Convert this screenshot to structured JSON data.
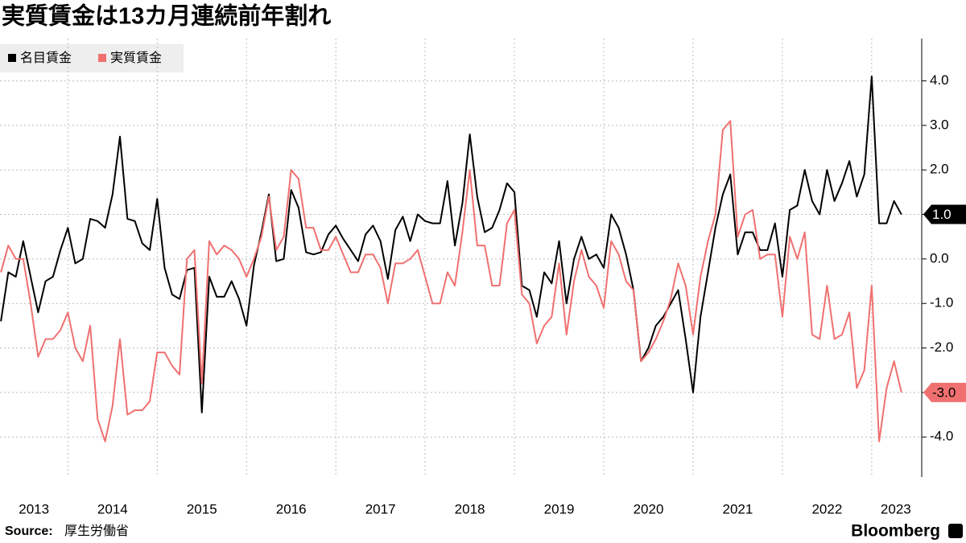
{
  "chart_data": {
    "type": "line",
    "title": "実質賃金は13カ月連続前年割れ",
    "source_label": "Source:",
    "source": "厚生労働省",
    "brand": "Bloomberg",
    "x": [
      2013.25,
      2013.333,
      2013.417,
      2013.5,
      2013.583,
      2013.667,
      2013.75,
      2013.833,
      2013.917,
      2014.0,
      2014.083,
      2014.167,
      2014.25,
      2014.333,
      2014.417,
      2014.5,
      2014.583,
      2014.667,
      2014.75,
      2014.833,
      2014.917,
      2015.0,
      2015.083,
      2015.167,
      2015.25,
      2015.333,
      2015.417,
      2015.5,
      2015.583,
      2015.667,
      2015.75,
      2015.833,
      2015.917,
      2016.0,
      2016.083,
      2016.167,
      2016.25,
      2016.333,
      2016.417,
      2016.5,
      2016.583,
      2016.667,
      2016.75,
      2016.833,
      2016.917,
      2017.0,
      2017.083,
      2017.167,
      2017.25,
      2017.333,
      2017.417,
      2017.5,
      2017.583,
      2017.667,
      2017.75,
      2017.833,
      2017.917,
      2018.0,
      2018.083,
      2018.167,
      2018.25,
      2018.333,
      2018.417,
      2018.5,
      2018.583,
      2018.667,
      2018.75,
      2018.833,
      2018.917,
      2019.0,
      2019.083,
      2019.167,
      2019.25,
      2019.333,
      2019.417,
      2019.5,
      2019.583,
      2019.667,
      2019.75,
      2019.833,
      2019.917,
      2020.0,
      2020.083,
      2020.167,
      2020.25,
      2020.333,
      2020.417,
      2020.5,
      2020.583,
      2020.667,
      2020.75,
      2020.833,
      2020.917,
      2021.0,
      2021.083,
      2021.167,
      2021.25,
      2021.333,
      2021.417,
      2021.5,
      2021.583,
      2021.667,
      2021.75,
      2021.833,
      2021.917,
      2022.0,
      2022.083,
      2022.167,
      2022.25,
      2022.333,
      2022.417,
      2022.5,
      2022.583,
      2022.667,
      2022.75,
      2022.833,
      2022.917,
      2023.0,
      2023.083,
      2023.167,
      2023.25,
      2023.333
    ],
    "series": [
      {
        "name": "名目賃金",
        "color": "#000000",
        "end_label": "1.0",
        "values": [
          -1.4,
          -0.3,
          -0.4,
          0.4,
          -0.4,
          -1.2,
          -0.5,
          -0.4,
          0.2,
          0.7,
          -0.1,
          0.0,
          0.9,
          0.85,
          0.7,
          1.45,
          2.75,
          0.9,
          0.85,
          0.35,
          0.2,
          1.35,
          -0.2,
          -0.8,
          -0.9,
          -0.25,
          -0.2,
          -3.45,
          -0.4,
          -0.85,
          -0.85,
          -0.5,
          -0.9,
          -1.5,
          -0.15,
          0.6,
          1.45,
          -0.05,
          0.0,
          1.55,
          1.15,
          0.15,
          0.1,
          0.15,
          0.55,
          0.75,
          0.45,
          0.2,
          -0.05,
          0.55,
          0.75,
          0.4,
          -0.45,
          0.65,
          0.95,
          0.4,
          1.0,
          0.85,
          0.8,
          0.8,
          1.75,
          0.3,
          1.25,
          2.8,
          1.4,
          0.6,
          0.7,
          1.1,
          1.7,
          1.5,
          -0.6,
          -0.7,
          -1.3,
          -0.3,
          -0.55,
          0.4,
          -1.0,
          0.0,
          0.5,
          0.0,
          0.1,
          -0.2,
          1.0,
          0.7,
          0.1,
          -0.7,
          -2.3,
          -2.0,
          -1.5,
          -1.3,
          -1.0,
          -0.7,
          -1.8,
          -3.0,
          -1.3,
          -0.3,
          0.7,
          1.45,
          1.9,
          0.1,
          0.6,
          0.6,
          0.2,
          0.2,
          0.8,
          -0.4,
          1.1,
          1.2,
          2.0,
          1.3,
          1.0,
          2.0,
          1.3,
          1.7,
          2.2,
          1.4,
          1.9,
          4.1,
          0.8,
          0.8,
          1.3,
          1.0
        ]
      },
      {
        "name": "実質賃金",
        "color": "#f07070",
        "end_label": "-3.0",
        "values": [
          -0.3,
          0.3,
          0.0,
          0.0,
          -1.0,
          -2.2,
          -1.8,
          -1.8,
          -1.6,
          -1.2,
          -2.0,
          -2.3,
          -1.5,
          -3.6,
          -4.1,
          -3.3,
          -1.8,
          -3.5,
          -3.4,
          -3.4,
          -3.2,
          -2.1,
          -2.1,
          -2.4,
          -2.6,
          0.0,
          0.2,
          -2.8,
          0.4,
          0.1,
          0.3,
          0.2,
          0.0,
          -0.4,
          0.0,
          0.5,
          1.4,
          0.2,
          0.5,
          2.0,
          1.8,
          0.7,
          0.7,
          0.2,
          0.2,
          0.5,
          0.1,
          -0.3,
          -0.3,
          0.1,
          0.1,
          -0.2,
          -1.0,
          -0.1,
          -0.1,
          0.0,
          0.2,
          -0.4,
          -1.0,
          -1.0,
          -0.3,
          -0.6,
          0.6,
          2.0,
          0.3,
          0.3,
          -0.6,
          -0.6,
          0.8,
          1.1,
          -0.8,
          -1.0,
          -1.9,
          -1.5,
          -1.3,
          -0.1,
          -1.7,
          -0.5,
          0.2,
          -0.4,
          -0.6,
          -1.1,
          0.4,
          0.1,
          -0.5,
          -0.7,
          -2.3,
          -2.1,
          -1.8,
          -1.4,
          -0.9,
          -0.1,
          -0.6,
          -1.7,
          -0.4,
          0.4,
          1.0,
          2.9,
          3.1,
          0.5,
          1.0,
          1.1,
          0.0,
          0.1,
          0.1,
          -1.3,
          0.5,
          0.0,
          0.6,
          -1.7,
          -1.8,
          -0.6,
          -1.8,
          -1.7,
          -1.2,
          -2.9,
          -2.5,
          -0.6,
          -4.1,
          -2.9,
          -2.3,
          -3.0
        ]
      }
    ],
    "xlim": [
      2013.24,
      2023.56
    ],
    "xticks": [
      {
        "value": 2013.62,
        "label": "2013"
      },
      {
        "value": 2014.5,
        "label": "2014"
      },
      {
        "value": 2015.5,
        "label": "2015"
      },
      {
        "value": 2016.5,
        "label": "2016"
      },
      {
        "value": 2017.5,
        "label": "2017"
      },
      {
        "value": 2018.5,
        "label": "2018"
      },
      {
        "value": 2019.5,
        "label": "2019"
      },
      {
        "value": 2020.5,
        "label": "2020"
      },
      {
        "value": 2021.5,
        "label": "2021"
      },
      {
        "value": 2022.5,
        "label": "2022"
      },
      {
        "value": 2023.27,
        "label": "2023"
      }
    ],
    "xgrid": [
      2014,
      2015,
      2016,
      2017,
      2018,
      2019,
      2020,
      2021,
      2022,
      2023
    ],
    "ylim": [
      -4.9,
      4.95
    ],
    "yticks": [
      {
        "value": -4,
        "label": "-4.0"
      },
      {
        "value": -3,
        "label": "-3.0"
      },
      {
        "value": -2,
        "label": "-2.0"
      },
      {
        "value": -1,
        "label": "-1.0"
      },
      {
        "value": 0,
        "label": "0.0"
      },
      {
        "value": 1,
        "label": "1.0"
      },
      {
        "value": 2,
        "label": "2.0"
      },
      {
        "value": 3,
        "label": "3.0"
      },
      {
        "value": 4,
        "label": "4.0"
      }
    ],
    "grid": true,
    "legend": "top-left"
  }
}
